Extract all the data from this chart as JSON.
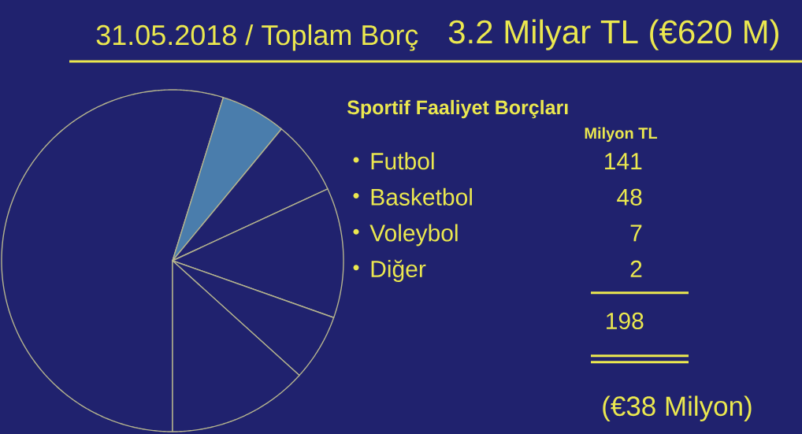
{
  "chart_data": [
    {
      "type": "pie",
      "title": "31.05.2018 / Toplam Borç",
      "subtitle": "3.2 Milyar TL (€620 M)",
      "categories": [
        null,
        null,
        null,
        null,
        null,
        null
      ],
      "values": [
        54.8,
        6.2,
        7.1,
        12.3,
        6.3,
        13.3
      ],
      "colors": [
        "#20226e",
        "#4a7dac",
        "#20226e",
        "#20226e",
        "#20226e",
        "#20226e"
      ]
    },
    {
      "type": "other",
      "title": "Sportif Faaliyet Borçları",
      "ylabel": "Milyon TL",
      "categories": [
        "Futbol",
        "Basketbol",
        "Voleybol",
        "Diğer"
      ],
      "values": [
        141,
        48,
        7,
        2
      ],
      "data_labels": true,
      "totals": [
        "198"
      ],
      "annotations": [
        "(€38 Milyon)"
      ]
    }
  ]
}
